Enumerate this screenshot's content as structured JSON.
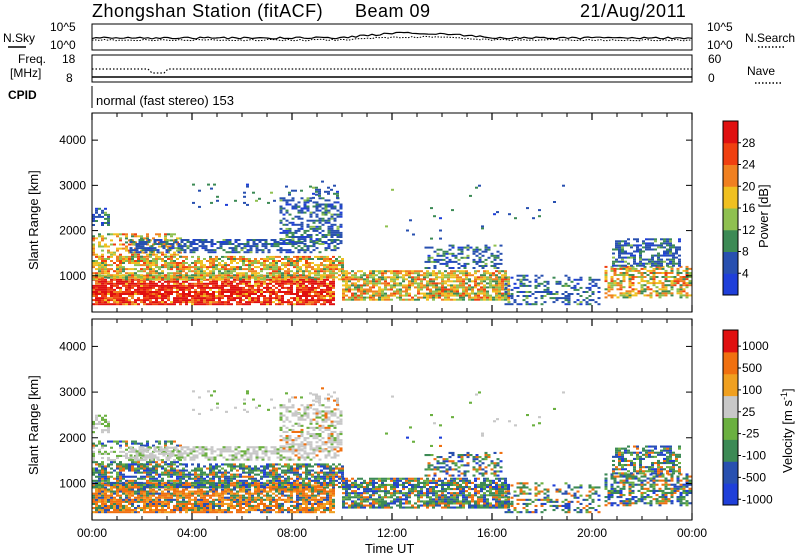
{
  "header": {
    "station": "Zhongshan Station (fitACF)",
    "beam": "Beam 09",
    "date": "21/Aug/2011"
  },
  "summary_panels": {
    "nsky_label": "N.Sky",
    "nsky_ticks": [
      "10^5",
      "10^0"
    ],
    "nsearch_label": "N.Search",
    "nsearch_ticks": [
      "10^5",
      "10^0"
    ],
    "freq_label_1": "Freq.",
    "freq_label_2": "[MHz]",
    "freq_ticks": [
      "18",
      "8"
    ],
    "nave_label": "Nave",
    "nave_ticks": [
      "60",
      "0"
    ],
    "cpid_label": "CPID",
    "cpid_text": "normal (fast stereo) 153"
  },
  "chart_data": [
    {
      "type": "heatmap",
      "name": "power",
      "ylabel": "Slant Range [km]",
      "xlabel": "Time UT",
      "yticks": [
        "1000",
        "2000",
        "3000",
        "4000"
      ],
      "ylim": [
        200,
        4600
      ],
      "xlim_hours": [
        0,
        24
      ],
      "colorbar_label": "Power [dB]",
      "colorbar_ticks": [
        "4",
        "8",
        "12",
        "16",
        "20",
        "24",
        "28"
      ],
      "colorbar_range": [
        0,
        32
      ],
      "colors": [
        "#1f3fd9",
        "#2850b0",
        "#3c8a55",
        "#8fc050",
        "#f0c020",
        "#f08020",
        "#f04010",
        "#e01010"
      ]
    },
    {
      "type": "heatmap",
      "name": "velocity",
      "ylabel": "Slant Range [km]",
      "xlabel": "Time UT",
      "yticks": [
        "1000",
        "2000",
        "3000",
        "4000"
      ],
      "ylim": [
        200,
        4600
      ],
      "xlim_hours": [
        0,
        24
      ],
      "colorbar_label": "Velocity [m s",
      "colorbar_label_sup": "-1",
      "colorbar_label_end": "]",
      "colorbar_ticks": [
        "1000",
        "500",
        "100",
        "25",
        "-25",
        "-100",
        "-500",
        "-1000"
      ],
      "colors": [
        "#1f3fd9",
        "#2850b0",
        "#3c8a55",
        "#6bb040",
        "#c8c8c8",
        "#f0a020",
        "#f07010",
        "#e01010"
      ]
    }
  ],
  "x_axis": {
    "ticks": [
      "00:00",
      "04:00",
      "08:00",
      "12:00",
      "16:00",
      "20:00",
      "00:00"
    ],
    "label": "Time UT"
  }
}
